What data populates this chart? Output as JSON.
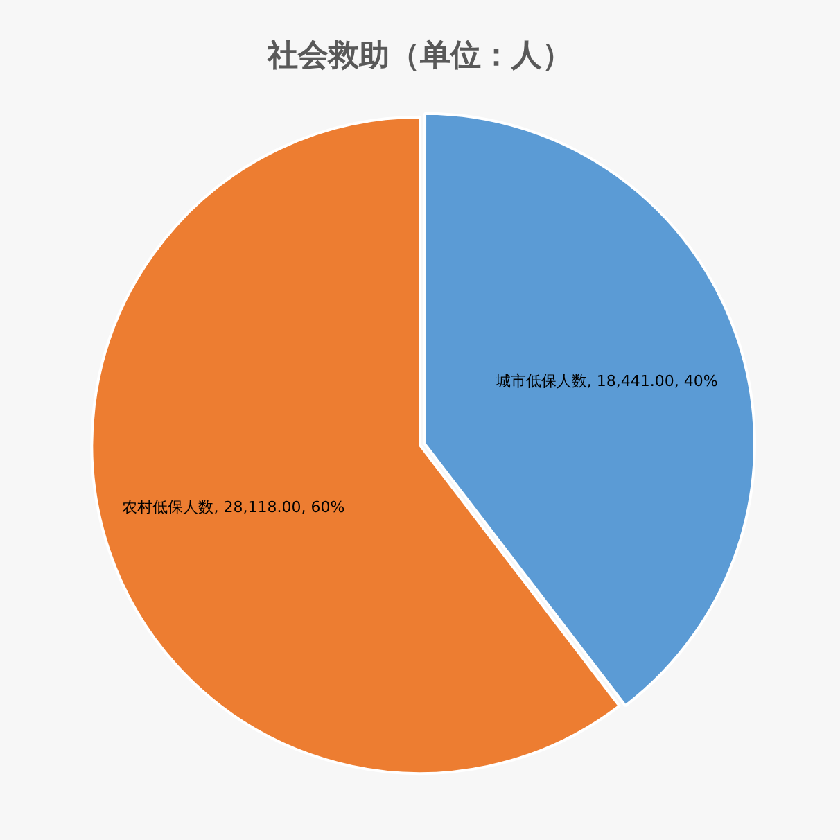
{
  "chart_data": {
    "type": "pie",
    "title": "社会救助（单位：人）",
    "categories": [
      "城市低保人数",
      "农村低保人数"
    ],
    "values": [
      18441,
      28118
    ],
    "colors": [
      "#5b9bd5",
      "#ed7d31"
    ],
    "value_labels": [
      "18,441.00, 40%",
      "28,118.00, 60%"
    ],
    "legend": false
  }
}
